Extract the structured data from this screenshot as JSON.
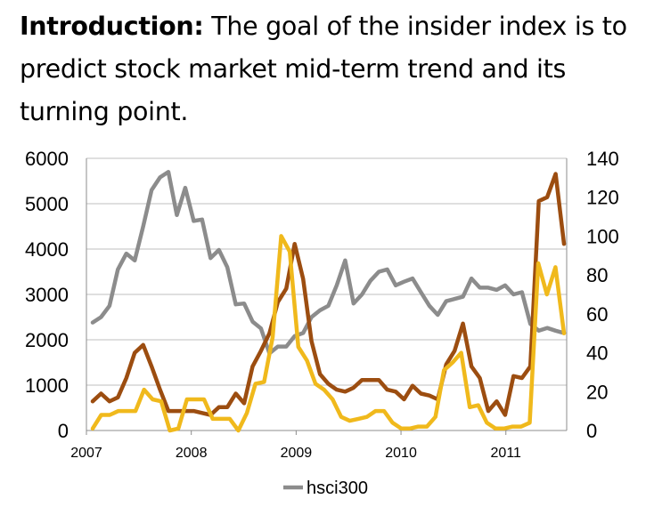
{
  "intro": {
    "lead": "Introduction:",
    "text": " The goal of the insider index is to predict stock market mid-term trend and its turning point."
  },
  "chart_data": {
    "type": "line",
    "title": "",
    "xlabel": "",
    "ylabel": "",
    "x_ticks": [
      "2007",
      "2008",
      "2009",
      "2010",
      "2011"
    ],
    "x_range": [
      2007.0,
      2011.58
    ],
    "y_left": {
      "ticks": [
        "0",
        "1000",
        "2000",
        "3000",
        "4000",
        "5000",
        "6000"
      ],
      "range": [
        0,
        6000
      ]
    },
    "y_right": {
      "ticks": [
        "0",
        "20",
        "40",
        "60",
        "80",
        "100",
        "120",
        "140"
      ],
      "range": [
        0,
        140
      ]
    },
    "grid": "horizontal",
    "legend_position": "bottom",
    "series": [
      {
        "name": "hsci300",
        "axis": "left",
        "color": "#8c8c8c",
        "values": [
          2380,
          2500,
          2750,
          3550,
          3900,
          3750,
          4500,
          5300,
          5580,
          5700,
          4750,
          5350,
          4620,
          4650,
          3800,
          3980,
          3600,
          2780,
          2800,
          2400,
          2250,
          1700,
          1850,
          1850,
          2080,
          2150,
          2500,
          2650,
          2750,
          3200,
          3750,
          2800,
          3000,
          3300,
          3500,
          3550,
          3200,
          3280,
          3350,
          3050,
          2750,
          2550,
          2850,
          2900,
          2950,
          3350,
          3150,
          3150,
          3100,
          3200,
          3000,
          3050,
          2350,
          2200,
          2260,
          2200,
          2150
        ]
      },
      {
        "axis": "right",
        "color": "#9c4d10",
        "values": [
          15,
          19,
          15,
          17,
          27,
          40,
          44,
          33,
          21,
          10,
          10,
          10,
          10,
          9,
          8,
          12,
          12,
          19,
          14,
          33,
          41,
          50,
          66,
          73,
          96,
          78,
          46,
          29,
          24,
          21,
          20,
          22,
          26,
          26,
          26,
          21,
          20,
          16,
          23,
          19,
          18,
          16,
          34,
          41,
          55,
          33,
          27,
          10,
          15,
          8,
          28,
          27,
          33,
          118,
          120,
          132,
          96
        ]
      },
      {
        "axis": "right",
        "color": "#f0b91c",
        "values": [
          1,
          8,
          8,
          10,
          10,
          10,
          21,
          16,
          15,
          0,
          1,
          16,
          16,
          16,
          6,
          6,
          6,
          0,
          9,
          24,
          25,
          48,
          100,
          92,
          43,
          36,
          24,
          21,
          16,
          7,
          5,
          6,
          7,
          10,
          10,
          4,
          1,
          1,
          2,
          2,
          7,
          31,
          35,
          40,
          12,
          13,
          4,
          1,
          1,
          2,
          2,
          4,
          86,
          70,
          84,
          50
        ]
      }
    ]
  }
}
